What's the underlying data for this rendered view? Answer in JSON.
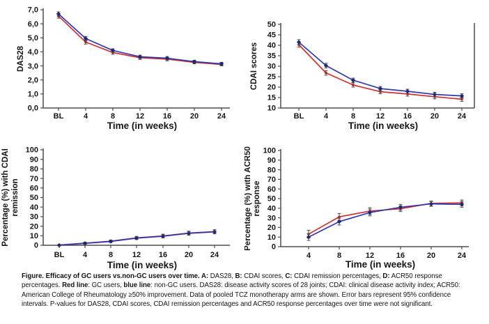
{
  "colors": {
    "gc_users_line": "#d02f2f",
    "non_gc_users_line": "#3238b0",
    "gc_users_marker": "#a42424",
    "non_gc_users_marker": "#1b2a70",
    "axis": "#4d4d4d",
    "error_bar": "#4d4d4d",
    "background": "#ffffff"
  },
  "chart_data": [
    {
      "type": "line",
      "panel": "A",
      "ylabel_lines": [
        "DAS28"
      ],
      "xlabel": "Time (in weeks)",
      "categories": [
        "BL",
        "4",
        "8",
        "12",
        "16",
        "20",
        "24"
      ],
      "ylim": [
        0,
        7
      ],
      "yticks": [
        0,
        1,
        2,
        3,
        4,
        5,
        6,
        7
      ],
      "ytick_labels": [
        "0,0",
        "1,0",
        "2,0",
        "3,0",
        "4,0",
        "5,0",
        "6,0",
        "7,0"
      ],
      "grid": false,
      "legend": "none",
      "series": [
        {
          "key": "gc-users",
          "name": "GC users",
          "color": "#d02f2f",
          "marker_color": "#a42424",
          "values": [
            6.55,
            4.7,
            3.95,
            3.58,
            3.48,
            3.25,
            3.1
          ],
          "errors": [
            0.15,
            0.15,
            0.12,
            0.12,
            0.12,
            0.1,
            0.1
          ]
        },
        {
          "key": "non-gc-users",
          "name": "non-GC users",
          "color": "#3238b0",
          "marker_color": "#1b2a70",
          "values": [
            6.7,
            4.95,
            4.1,
            3.65,
            3.55,
            3.3,
            3.15
          ],
          "errors": [
            0.15,
            0.15,
            0.12,
            0.12,
            0.12,
            0.1,
            0.1
          ]
        }
      ]
    },
    {
      "type": "line",
      "panel": "B",
      "ylabel_lines": [
        "CDAI scores"
      ],
      "xlabel": "Time (in weeks)",
      "categories": [
        "BL",
        "4",
        "8",
        "12",
        "16",
        "20",
        "24"
      ],
      "ylim": [
        10,
        50
      ],
      "yticks": [
        10,
        15,
        20,
        25,
        30,
        35,
        40,
        45,
        50
      ],
      "ytick_labels": [
        "10",
        "15",
        "20",
        "25",
        "30",
        "35",
        "40",
        "45",
        "50"
      ],
      "grid": false,
      "legend": "none",
      "series": [
        {
          "key": "gc-users",
          "name": "GC users",
          "color": "#d02f2f",
          "marker_color": "#a42424",
          "values": [
            40.3,
            26.8,
            21.0,
            17.8,
            16.7,
            15.4,
            14.2
          ],
          "errors": [
            1.2,
            1.1,
            1.0,
            1.0,
            1.0,
            1.0,
            1.0
          ]
        },
        {
          "key": "non-gc-users",
          "name": "non-GC users",
          "color": "#3238b0",
          "marker_color": "#1b2a70",
          "values": [
            41.5,
            30.3,
            23.3,
            19.3,
            18.0,
            16.5,
            15.8
          ],
          "errors": [
            1.2,
            1.1,
            1.0,
            1.0,
            1.0,
            1.0,
            1.0
          ]
        }
      ]
    },
    {
      "type": "line",
      "panel": "C",
      "ylabel_lines": [
        "Percentage (%) with CDAI",
        "remission"
      ],
      "xlabel": "Time (in weeks)",
      "categories": [
        "BL",
        "4",
        "8",
        "12",
        "16",
        "20",
        "24"
      ],
      "ylim": [
        0,
        100
      ],
      "yticks": [
        0,
        10,
        20,
        30,
        40,
        50,
        60,
        70,
        80,
        90,
        100
      ],
      "ytick_labels": [
        "0",
        "10",
        "20",
        "30",
        "40",
        "50",
        "60",
        "70",
        "80",
        "90",
        "100"
      ],
      "grid": false,
      "legend": "none",
      "series": [
        {
          "key": "gc-users",
          "name": "GC users",
          "color": "#d02f2f",
          "marker_color": "#a42424",
          "values": [
            0.3,
            2.2,
            4.3,
            7.8,
            9.8,
            12.8,
            14.3
          ],
          "errors": [
            0.5,
            1.0,
            1.2,
            1.5,
            1.8,
            2.0,
            2.0
          ]
        },
        {
          "key": "non-gc-users",
          "name": "non-GC users",
          "color": "#3238b0",
          "marker_color": "#1b2a70",
          "values": [
            0,
            2,
            4,
            7.5,
            9.5,
            12.5,
            14
          ],
          "errors": [
            0.5,
            1.0,
            1.2,
            1.5,
            1.8,
            2.0,
            2.0
          ]
        }
      ]
    },
    {
      "type": "line",
      "panel": "D",
      "ylabel_lines": [
        "Percentage (%) with ACR50",
        "response"
      ],
      "xlabel": "Time (in weeks)",
      "categories": [
        "4",
        "8",
        "12",
        "16",
        "20",
        "24"
      ],
      "ylim": [
        0,
        100
      ],
      "yticks": [
        0,
        10,
        20,
        30,
        40,
        50,
        60,
        70,
        80,
        90,
        100
      ],
      "ytick_labels": [
        "0",
        "10",
        "20",
        "30",
        "40",
        "50",
        "60",
        "70",
        "80",
        "90",
        "100"
      ],
      "grid": false,
      "legend": "none",
      "series": [
        {
          "key": "gc-users",
          "name": "GC users",
          "color": "#d02f2f",
          "marker_color": "#a42424",
          "values": [
            13,
            31,
            37,
            39.5,
            45,
            45.5
          ],
          "errors": [
            4,
            3.5,
            3.5,
            3,
            2.5,
            3
          ]
        },
        {
          "key": "non-gc-users",
          "name": "non-GC users",
          "color": "#3238b0",
          "marker_color": "#1b2a70",
          "values": [
            10,
            26,
            35.5,
            41,
            44.5,
            44
          ],
          "errors": [
            3.5,
            3.5,
            3.5,
            3,
            2.5,
            3
          ]
        }
      ]
    }
  ],
  "caption": {
    "segments": [
      {
        "text": "Figure.  Efficacy of GC users vs.non-GC users over time. ",
        "bold": true
      },
      {
        "text": "A:",
        "bold": true
      },
      {
        "text": " DAS28, ",
        "bold": false
      },
      {
        "text": "B:",
        "bold": true
      },
      {
        "text": " CDAI scores, ",
        "bold": false
      },
      {
        "text": "C:",
        "bold": true
      },
      {
        "text": " CDAI remission percentages, ",
        "bold": false
      },
      {
        "text": "D:",
        "bold": true
      },
      {
        "text": " ACR50 response percentages. ",
        "bold": false
      },
      {
        "text": "Red line",
        "bold": true
      },
      {
        "text": ": GC users, ",
        "bold": false
      },
      {
        "text": "blue line",
        "bold": true
      },
      {
        "text": ": non-GC users.  DAS28: disease activity scores of 28 joints; CDAI: clinical disease activity index; ACR50: American College of Rheumatology ≥50% improvement. Data of pooled TCZ monotherapy arms are shown. Error bars represent 95% confidence intervals. P-values for DAS28, CDAI scores, CDAI remission percentages and ACR50 response percentages over time were not significant.",
        "bold": false
      }
    ]
  }
}
